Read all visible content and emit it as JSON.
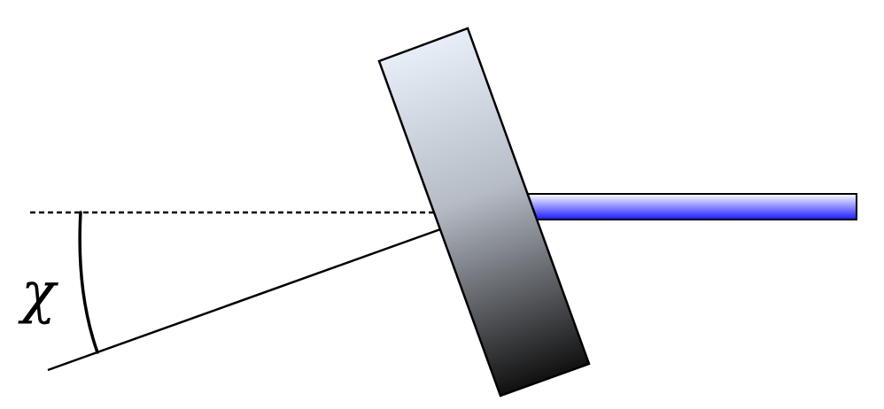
{
  "diagram": {
    "angle_label": "χ",
    "colors": {
      "line": "#000000",
      "beam_top": "#ffffff",
      "beam_bottom": "#1a1aff",
      "plate_top": "#e8eef8",
      "plate_bottom": "#111111"
    }
  }
}
